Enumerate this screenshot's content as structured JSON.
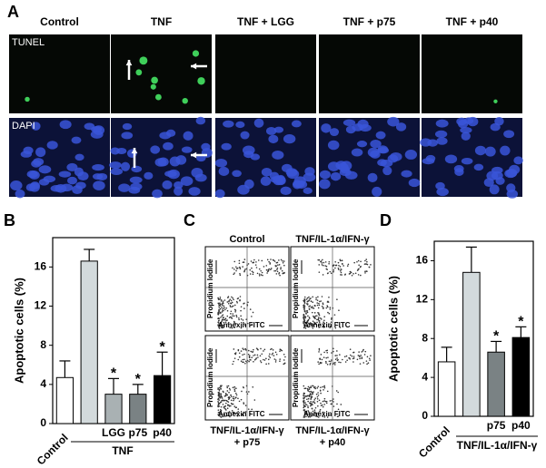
{
  "panels": {
    "a": "A",
    "b": "B",
    "c": "C",
    "d": "D"
  },
  "microscopy": {
    "columns": [
      "Control",
      "TNF",
      "TNF + LGG",
      "TNF + p75",
      "TNF + p40"
    ],
    "rows": [
      "TUNEL",
      "DAPI"
    ]
  },
  "flow": {
    "y_label": "Propidium Iodide",
    "x_label": "Annexin FITC",
    "plots": [
      {
        "title": [
          "Control"
        ]
      },
      {
        "title": [
          "TNF/IL-1α/IFN-γ"
        ]
      },
      {
        "title": [
          "TNF/IL-1α/IFN-γ",
          "+ p75"
        ]
      },
      {
        "title": [
          "TNF/IL-1α/IFN-γ",
          "+ p40"
        ]
      }
    ]
  },
  "chart_data": [
    {
      "type": "bar",
      "ylabel": "Apoptotic cells (%)",
      "categories": [
        "Control",
        null,
        "LGG",
        "p75",
        "p40"
      ],
      "group_label": "TNF",
      "values": [
        4.7,
        16.6,
        3.0,
        3.0,
        4.9
      ],
      "errors": [
        1.7,
        1.2,
        1.6,
        1.0,
        2.4
      ],
      "colors": [
        "#ffffff",
        "#d3dadc",
        "#a9b1b3",
        "#7a8284",
        "#000000"
      ],
      "markers": [
        null,
        null,
        "*",
        "*",
        "*"
      ],
      "ylim": [
        0,
        19
      ],
      "yticks": [
        0,
        4,
        8,
        12,
        16
      ]
    },
    {
      "type": "bar",
      "ylabel": "Apoptotic cells (%)",
      "categories": [
        "Control",
        null,
        "p75",
        "p40"
      ],
      "group_label": "TNF/IL-1α/IFN-γ",
      "values": [
        5.6,
        14.8,
        6.6,
        8.1
      ],
      "errors": [
        1.5,
        2.6,
        1.1,
        1.1
      ],
      "colors": [
        "#ffffff",
        "#d3dadc",
        "#7a8284",
        "#000000"
      ],
      "markers": [
        null,
        null,
        "*",
        "*"
      ],
      "ylim": [
        0,
        18
      ],
      "yticks": [
        0,
        4,
        8,
        12,
        16
      ]
    }
  ]
}
